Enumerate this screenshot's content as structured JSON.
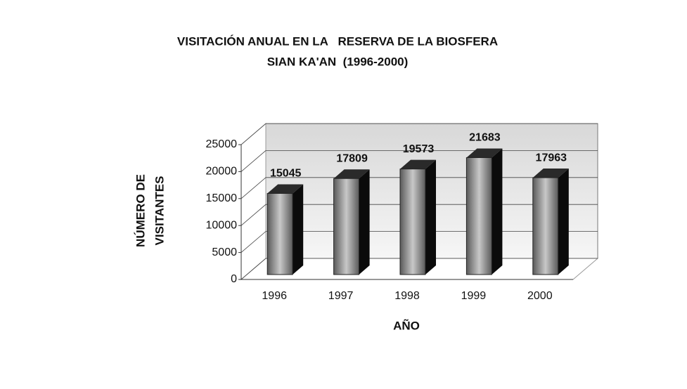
{
  "chart_data": {
    "type": "bar3d",
    "title": [
      "VISITACIÓN ANUAL EN LA   RESERVA DE LA BIOSFERA",
      "SIAN KA'AN  (1996-2000)"
    ],
    "y_label": [
      "NÚMERO DE",
      "VISITANTES"
    ],
    "x_label": "AÑO",
    "categories": [
      "1996",
      "1997",
      "1998",
      "1999",
      "2000"
    ],
    "values": [
      15045,
      17809,
      19573,
      21683,
      17963
    ],
    "color": "#9a9a9a",
    "ylim": [
      0,
      25000
    ],
    "yticks": [
      0,
      5000,
      10000,
      15000,
      20000,
      25000
    ],
    "grid": true
  }
}
